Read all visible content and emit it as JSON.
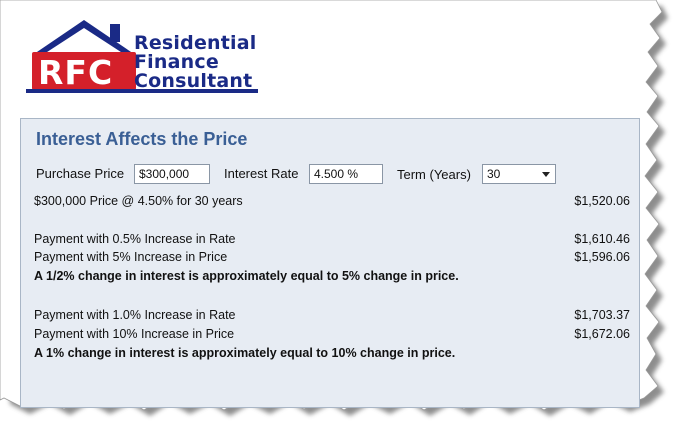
{
  "logo": {
    "mark": "RFC",
    "lines": [
      "Residential",
      "Finance",
      "Consultant"
    ]
  },
  "panel": {
    "title": "Interest Affects the Price",
    "inputs": {
      "purchase_price_label": "Purchase Price",
      "purchase_price_value": "$300,000",
      "interest_rate_label": "Interest Rate",
      "interest_rate_value": "4.500 %",
      "term_label": "Term (Years)",
      "term_value": "30"
    },
    "summary": {
      "label": "$300,000 Price @ 4.50% for 30 years",
      "value": "$1,520.06"
    },
    "group1": {
      "row1_label": "Payment with 0.5% Increase in Rate",
      "row1_value": "$1,610.46",
      "row2_label": "Payment with 5% Increase in Price",
      "row2_value": "$1,596.06",
      "conclusion": "A 1/2% change in interest is approximately equal to 5% change in price."
    },
    "group2": {
      "row1_label": "Payment with 1.0% Increase in Rate",
      "row1_value": "$1,703.37",
      "row2_label": "Payment with 10% Increase in Price",
      "row2_value": "$1,672.06",
      "conclusion": "A 1% change in interest is approximately equal to 10% change in price."
    }
  },
  "colors": {
    "brand_red": "#d4202a",
    "brand_navy": "#1a2a86",
    "title_blue": "#3a5f95",
    "panel_bg": "#e7ecf3"
  }
}
